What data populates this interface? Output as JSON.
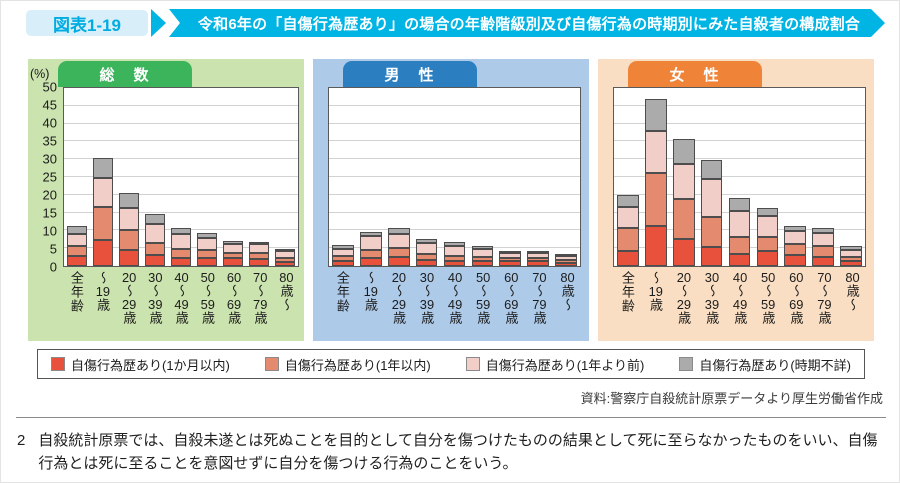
{
  "header": {
    "figure_label": "図表1-19",
    "title": "令和6年の「自傷行為歴あり」の場合の年齢階級別及び自傷行為の時期別にみた自殺者の構成割合"
  },
  "colors": {
    "accent_cyan": "#00b4e4",
    "badge_bg": "#d8eff9",
    "badge_text": "#00ade2",
    "segment_colors": [
      "#e8523d",
      "#e48a6f",
      "#f1cec7",
      "#ababab"
    ],
    "segment_border": "#4d4d4d"
  },
  "chart_data": [
    {
      "type": "bar",
      "stacked": true,
      "title": "総　数",
      "theme": {
        "tab": "#3bb45b",
        "bg": "#cbe3ae"
      },
      "show_y_axis": true,
      "y_unit": "(%)",
      "ylim": [
        0,
        50
      ],
      "yticks": [
        0,
        5,
        10,
        15,
        20,
        25,
        30,
        35,
        40,
        45,
        50
      ],
      "grid": true,
      "categories": [
        "全年齢",
        "〜19歳",
        "20〜29歳",
        "30〜39歳",
        "40〜49歳",
        "50〜59歳",
        "60〜69歳",
        "70〜79歳",
        "80歳〜"
      ],
      "series": [
        {
          "name": "自傷行為歴あり(1か月以内)",
          "values": [
            2.7,
            7.3,
            4.5,
            3.1,
            2.3,
            2.3,
            2.2,
            1.9,
            1.1
          ]
        },
        {
          "name": "自傷行為歴あり(1年以内)",
          "values": [
            2.8,
            9.0,
            5.5,
            3.3,
            2.5,
            2.2,
            1.5,
            1.7,
            1.1
          ]
        },
        {
          "name": "自傷行為歴あり(1年より前)",
          "values": [
            3.5,
            8.1,
            6.0,
            5.3,
            4.1,
            3.3,
            2.5,
            2.4,
            1.9
          ]
        },
        {
          "name": "自傷行為歴あり(時期不詳)",
          "values": [
            2.0,
            5.6,
            4.2,
            2.8,
            1.7,
            1.4,
            0.7,
            0.8,
            0.5
          ]
        }
      ]
    },
    {
      "type": "bar",
      "stacked": true,
      "title": "男　性",
      "theme": {
        "tab": "#2b7fc0",
        "bg": "#adcae9"
      },
      "show_y_axis": false,
      "ylim": [
        0,
        50
      ],
      "yticks": [
        0,
        5,
        10,
        15,
        20,
        25,
        30,
        35,
        40,
        45,
        50
      ],
      "grid": true,
      "categories": [
        "全年齢",
        "〜19歳",
        "20〜29歳",
        "30〜39歳",
        "40〜49歳",
        "50〜59歳",
        "60〜69歳",
        "70〜79歳",
        "80歳〜"
      ],
      "series": [
        {
          "name": "自傷行為歴あり(1か月以内)",
          "values": [
            1.5,
            2.2,
            2.6,
            1.8,
            1.4,
            1.4,
            1.3,
            1.4,
            0.9
          ]
        },
        {
          "name": "自傷行為歴あり(1年以内)",
          "values": [
            1.3,
            2.2,
            2.4,
            1.6,
            1.4,
            1.2,
            0.9,
            0.8,
            0.7
          ]
        },
        {
          "name": "自傷行為歴あり(1年より前)",
          "values": [
            2.0,
            3.9,
            3.9,
            3.0,
            2.9,
            2.2,
            1.5,
            1.4,
            1.2
          ]
        },
        {
          "name": "自傷行為歴あり(時期不詳)",
          "values": [
            1.1,
            1.2,
            1.7,
            1.2,
            0.9,
            0.7,
            0.4,
            0.4,
            0.3
          ]
        }
      ]
    },
    {
      "type": "bar",
      "stacked": true,
      "title": "女　性",
      "theme": {
        "tab": "#ef8439",
        "bg": "#f9dec3"
      },
      "show_y_axis": false,
      "ylim": [
        0,
        50
      ],
      "yticks": [
        0,
        5,
        10,
        15,
        20,
        25,
        30,
        35,
        40,
        45,
        50
      ],
      "grid": true,
      "categories": [
        "全年齢",
        "〜19歳",
        "20〜29歳",
        "30〜39歳",
        "40〜49歳",
        "50〜59歳",
        "60〜69歳",
        "70〜79歳",
        "80歳〜"
      ],
      "series": [
        {
          "name": "自傷行為歴あり(1か月以内)",
          "values": [
            4.1,
            11.2,
            7.5,
            5.3,
            3.4,
            4.1,
            3.0,
            2.5,
            1.4
          ]
        },
        {
          "name": "自傷行為歴あり(1年以内)",
          "values": [
            6.4,
            14.7,
            11.1,
            8.2,
            4.6,
            3.9,
            3.2,
            3.1,
            1.1
          ]
        },
        {
          "name": "自傷行為歴あり(1年より前)",
          "values": [
            6.0,
            11.6,
            9.7,
            10.7,
            7.3,
            5.8,
            3.6,
            3.7,
            2.0
          ]
        },
        {
          "name": "自傷行為歴あり(時期不詳)",
          "values": [
            3.3,
            8.9,
            6.9,
            5.3,
            3.6,
            2.4,
            1.3,
            1.2,
            1.0
          ]
        }
      ]
    }
  ],
  "legend": {
    "position": "bottom",
    "items": [
      {
        "label": "自傷行為歴あり(1か月以内)",
        "color": "#e8523d"
      },
      {
        "label": "自傷行為歴あり(1年以内)",
        "color": "#e48a6f"
      },
      {
        "label": "自傷行為歴あり(1年より前)",
        "color": "#f1cec7"
      },
      {
        "label": "自傷行為歴あり(時期不詳)",
        "color": "#ababab"
      }
    ]
  },
  "source": "資料:警察庁自殺統計原票データより厚生労働省作成",
  "footnote": {
    "number": "2",
    "text": "自殺統計原票では、自殺未遂とは死ぬことを目的として自分を傷つけたものの結果として死に至らなかったものをいい、自傷行為とは死に至ることを意図せずに自分を傷つける行為のことをいう。"
  }
}
